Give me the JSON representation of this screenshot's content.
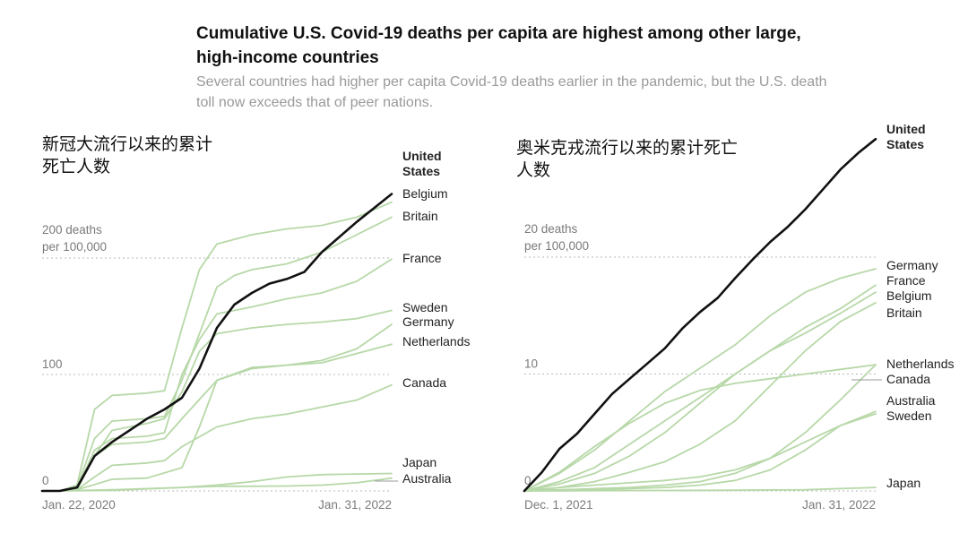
{
  "title": "Cumulative U.S. Covid-19 deaths per capita are highest among other large, high-income countries",
  "subtitle": "Several countries had higher per capita Covid-19 deaths earlier in the pandemic, but the U.S. death toll now exceeds that of peer nations.",
  "colors": {
    "us": "#111111",
    "others": "#b7d8a8",
    "grid": "#b8b8b8",
    "text": "#222222",
    "axis_text": "#7a7a7a"
  },
  "chart_data": [
    {
      "type": "line",
      "annotation": "新冠大流行以来的累计死亡人数",
      "x_start": "Jan. 22, 2020",
      "x_end": "Jan. 31, 2022",
      "x_tick_labels": [
        "Jan. 22, 2020",
        "Jan. 31, 2022"
      ],
      "y_tick_labels": [
        "0",
        "100",
        "200 deaths per 100,000"
      ],
      "y_ticks": [
        0,
        100,
        200
      ],
      "ylim": [
        0,
        205
      ],
      "highlight": "United States",
      "series": [
        {
          "name": "United States",
          "x": [
            0,
            0.05,
            0.1,
            0.15,
            0.2,
            0.25,
            0.3,
            0.35,
            0.4,
            0.45,
            0.5,
            0.55,
            0.6,
            0.65,
            0.7,
            0.75,
            0.8,
            0.85,
            0.9,
            0.95,
            1.0
          ],
          "values": [
            0,
            0,
            3,
            30,
            42,
            52,
            62,
            70,
            80,
            105,
            140,
            160,
            170,
            178,
            182,
            188,
            205,
            218,
            231,
            243,
            255
          ]
        },
        {
          "name": "Belgium",
          "x": [
            0,
            0.05,
            0.1,
            0.15,
            0.2,
            0.3,
            0.35,
            0.4,
            0.45,
            0.5,
            0.6,
            0.7,
            0.8,
            0.9,
            1.0
          ],
          "values": [
            0,
            0,
            5,
            70,
            82,
            84,
            86,
            140,
            190,
            212,
            220,
            225,
            228,
            235,
            248
          ]
        },
        {
          "name": "Britain",
          "x": [
            0,
            0.05,
            0.1,
            0.15,
            0.2,
            0.3,
            0.35,
            0.4,
            0.5,
            0.55,
            0.6,
            0.7,
            0.8,
            0.9,
            1.0
          ],
          "values": [
            0,
            0,
            3,
            45,
            60,
            62,
            64,
            95,
            175,
            185,
            190,
            195,
            205,
            220,
            235
          ]
        },
        {
          "name": "France",
          "x": [
            0,
            0.05,
            0.1,
            0.15,
            0.2,
            0.3,
            0.35,
            0.4,
            0.45,
            0.5,
            0.6,
            0.7,
            0.8,
            0.9,
            1.0
          ],
          "values": [
            0,
            0,
            2,
            35,
            45,
            47,
            50,
            100,
            130,
            152,
            158,
            165,
            170,
            180,
            199
          ]
        },
        {
          "name": "Sweden",
          "x": [
            0,
            0.05,
            0.1,
            0.15,
            0.2,
            0.3,
            0.35,
            0.4,
            0.45,
            0.5,
            0.6,
            0.7,
            0.8,
            0.9,
            1.0
          ],
          "values": [
            0,
            0,
            1,
            30,
            52,
            58,
            62,
            85,
            120,
            135,
            140,
            143,
            145,
            148,
            155
          ]
        },
        {
          "name": "Germany",
          "x": [
            0,
            0.05,
            0.1,
            0.2,
            0.3,
            0.4,
            0.45,
            0.5,
            0.6,
            0.7,
            0.8,
            0.9,
            1.0
          ],
          "values": [
            0,
            0,
            1,
            10,
            11,
            20,
            55,
            95,
            105,
            108,
            112,
            122,
            143
          ]
        },
        {
          "name": "Netherlands",
          "x": [
            0,
            0.05,
            0.1,
            0.15,
            0.2,
            0.3,
            0.35,
            0.4,
            0.5,
            0.6,
            0.7,
            0.8,
            0.9,
            1.0
          ],
          "values": [
            0,
            0,
            2,
            30,
            40,
            42,
            45,
            62,
            95,
            106,
            108,
            110,
            118,
            126
          ]
        },
        {
          "name": "Canada",
          "x": [
            0,
            0.05,
            0.1,
            0.15,
            0.2,
            0.3,
            0.35,
            0.4,
            0.5,
            0.6,
            0.7,
            0.8,
            0.9,
            1.0
          ],
          "values": [
            0,
            0,
            1,
            12,
            22,
            24,
            26,
            38,
            55,
            62,
            66,
            72,
            78,
            91
          ]
        },
        {
          "name": "Japan",
          "x": [
            0,
            0.05,
            0.2,
            0.4,
            0.5,
            0.6,
            0.7,
            0.8,
            0.9,
            1.0
          ],
          "values": [
            0,
            0,
            1,
            3,
            5,
            8,
            12,
            14,
            14.5,
            15
          ]
        },
        {
          "name": "Australia",
          "x": [
            0,
            0.05,
            0.2,
            0.4,
            0.5,
            0.6,
            0.7,
            0.8,
            0.9,
            1.0
          ],
          "values": [
            0,
            0,
            0.5,
            3,
            4,
            4,
            4.2,
            5,
            7,
            11
          ]
        }
      ]
    },
    {
      "type": "line",
      "annotation": "奥米克戎流行以来的累计死亡人数",
      "x_start": "Dec. 1, 2021",
      "x_end": "Jan. 31, 2022",
      "x_tick_labels": [
        "Dec. 1, 2021",
        "Jan. 31, 2022"
      ],
      "y_tick_labels": [
        "0",
        "10",
        "20 deaths per 100,000"
      ],
      "y_ticks": [
        0,
        10,
        20
      ],
      "ylim": [
        0,
        31
      ],
      "highlight": "United States",
      "series": [
        {
          "name": "United States",
          "x": [
            0,
            0.05,
            0.1,
            0.15,
            0.2,
            0.25,
            0.3,
            0.35,
            0.4,
            0.45,
            0.5,
            0.55,
            0.6,
            0.65,
            0.7,
            0.75,
            0.8,
            0.85,
            0.9,
            0.95,
            1.0
          ],
          "values": [
            0,
            1.6,
            3.6,
            4.9,
            6.6,
            8.3,
            9.6,
            10.9,
            12.2,
            13.9,
            15.3,
            16.5,
            18.2,
            19.8,
            21.3,
            22.6,
            24.1,
            25.8,
            27.5,
            28.9,
            30.1
          ]
        },
        {
          "name": "Germany",
          "x": [
            0,
            0.1,
            0.2,
            0.3,
            0.4,
            0.5,
            0.6,
            0.7,
            0.8,
            0.9,
            1.0
          ],
          "values": [
            0,
            1.5,
            3.5,
            6.0,
            8.5,
            10.5,
            12.5,
            15.0,
            17.0,
            18.2,
            19.0
          ]
        },
        {
          "name": "France",
          "x": [
            0,
            0.1,
            0.2,
            0.3,
            0.4,
            0.5,
            0.6,
            0.7,
            0.8,
            0.9,
            1.0
          ],
          "values": [
            0,
            0.8,
            2.0,
            4.0,
            6.0,
            8.0,
            10.0,
            12.0,
            14.0,
            15.6,
            17.6
          ]
        },
        {
          "name": "Belgium",
          "x": [
            0,
            0.1,
            0.2,
            0.3,
            0.4,
            0.5,
            0.6,
            0.7,
            0.8,
            0.9,
            1.0
          ],
          "values": [
            0,
            0.6,
            1.5,
            3.0,
            5.0,
            7.5,
            10.0,
            12.0,
            13.5,
            15.2,
            17.0
          ]
        },
        {
          "name": "Britain",
          "x": [
            0,
            0.1,
            0.2,
            0.3,
            0.4,
            0.5,
            0.6,
            0.7,
            0.8,
            0.9,
            1.0
          ],
          "values": [
            0,
            0.3,
            0.8,
            1.6,
            2.5,
            4.0,
            6.0,
            9.0,
            12.0,
            14.5,
            16.1
          ]
        },
        {
          "name": "Netherlands",
          "x": [
            0,
            0.1,
            0.2,
            0.3,
            0.4,
            0.5,
            0.6,
            0.7,
            0.8,
            0.9,
            1.0
          ],
          "values": [
            0,
            1.6,
            3.8,
            5.8,
            7.5,
            8.6,
            9.2,
            9.6,
            10.0,
            10.4,
            10.8
          ]
        },
        {
          "name": "Canada",
          "x": [
            0,
            0.1,
            0.2,
            0.3,
            0.4,
            0.5,
            0.6,
            0.7,
            0.8,
            0.9,
            1.0
          ],
          "values": [
            0,
            0.1,
            0.2,
            0.3,
            0.5,
            0.8,
            1.5,
            2.8,
            5.0,
            7.8,
            10.8
          ]
        },
        {
          "name": "Australia",
          "x": [
            0,
            0.1,
            0.2,
            0.3,
            0.4,
            0.5,
            0.6,
            0.7,
            0.8,
            0.9,
            1.0
          ],
          "values": [
            0,
            0.05,
            0.1,
            0.2,
            0.3,
            0.5,
            0.9,
            1.8,
            3.5,
            5.6,
            6.8
          ]
        },
        {
          "name": "Sweden",
          "x": [
            0,
            0.1,
            0.2,
            0.3,
            0.4,
            0.5,
            0.6,
            0.7,
            0.8,
            0.9,
            1.0
          ],
          "values": [
            0,
            0.3,
            0.5,
            0.7,
            0.9,
            1.2,
            1.8,
            2.8,
            4.2,
            5.6,
            6.6
          ]
        },
        {
          "name": "Japan",
          "x": [
            0,
            0.2,
            0.4,
            0.6,
            0.8,
            1.0
          ],
          "values": [
            0,
            0.02,
            0.04,
            0.06,
            0.1,
            0.3
          ]
        }
      ]
    }
  ]
}
